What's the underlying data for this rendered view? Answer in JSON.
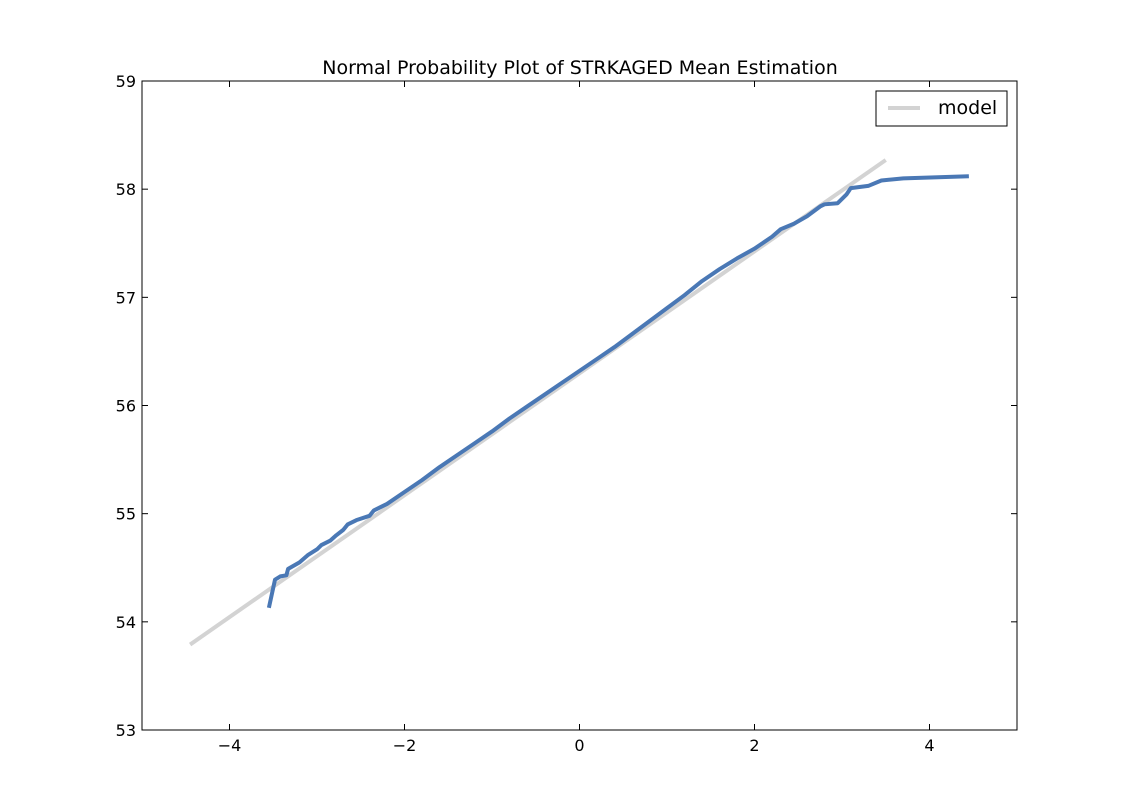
{
  "chart_data": {
    "type": "line",
    "title": "Normal Probability Plot of STRKAGED Mean Estimation",
    "xlabel": "",
    "ylabel": "",
    "xlim": [
      -5,
      5
    ],
    "ylim": [
      53,
      59
    ],
    "x_ticks": [
      -4,
      -2,
      0,
      2,
      4
    ],
    "x_tick_labels": [
      "−4",
      "−2",
      "0",
      "2",
      "4"
    ],
    "y_ticks": [
      53,
      54,
      55,
      56,
      57,
      58,
      59
    ],
    "y_tick_labels": [
      "53",
      "54",
      "55",
      "56",
      "57",
      "58",
      "59"
    ],
    "grid": false,
    "legend_position": "top-right",
    "series": [
      {
        "name": "model",
        "color": "#d3d3d3",
        "x": [
          -4.45,
          3.5
        ],
        "y": [
          53.79,
          58.27
        ]
      },
      {
        "color": "#4a78b5",
        "x": [
          -3.55,
          -3.48,
          -3.42,
          -3.35,
          -3.33,
          -3.2,
          -3.1,
          -3.0,
          -2.95,
          -2.85,
          -2.78,
          -2.7,
          -2.65,
          -2.55,
          -2.4,
          -2.35,
          -2.2,
          -2.0,
          -1.8,
          -1.6,
          -1.4,
          -1.2,
          -1.0,
          -0.8,
          -0.6,
          -0.4,
          -0.2,
          0.0,
          0.2,
          0.4,
          0.6,
          0.8,
          1.0,
          1.2,
          1.4,
          1.6,
          1.8,
          2.0,
          2.2,
          2.3,
          2.45,
          2.6,
          2.75,
          2.8,
          2.95,
          3.05,
          3.1,
          3.3,
          3.45,
          3.7,
          4.45
        ],
        "y": [
          54.13,
          54.39,
          54.42,
          54.43,
          54.49,
          54.55,
          54.62,
          54.67,
          54.71,
          54.75,
          54.8,
          54.85,
          54.9,
          54.94,
          54.98,
          55.03,
          55.09,
          55.2,
          55.31,
          55.43,
          55.54,
          55.65,
          55.76,
          55.88,
          55.99,
          56.1,
          56.21,
          56.32,
          56.43,
          56.54,
          56.66,
          56.78,
          56.9,
          57.02,
          57.15,
          57.26,
          57.36,
          57.45,
          57.56,
          57.63,
          57.68,
          57.75,
          57.84,
          57.86,
          57.87,
          57.95,
          58.01,
          58.03,
          58.08,
          58.1,
          58.12
        ]
      }
    ]
  }
}
